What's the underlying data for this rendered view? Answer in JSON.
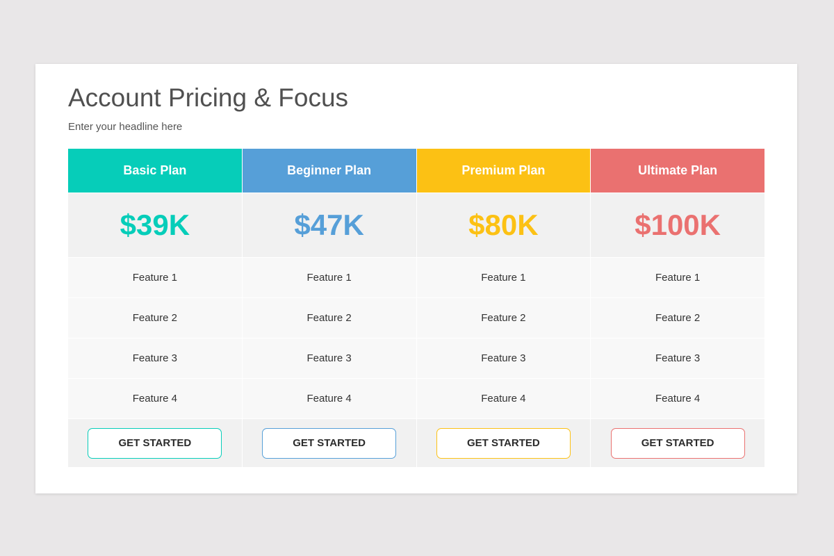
{
  "title": "Account Pricing & Focus",
  "subtitle": "Enter your headline here",
  "plans": [
    {
      "name": "Basic Plan",
      "price": "$39K",
      "color": "#06cdb9",
      "features": [
        "Feature 1",
        "Feature 2",
        "Feature 3",
        "Feature 4"
      ],
      "button": "GET STARTED"
    },
    {
      "name": "Beginner Plan",
      "price": "$47K",
      "color": "#569fd8",
      "features": [
        "Feature 1",
        "Feature 2",
        "Feature 3",
        "Feature 4"
      ],
      "button": "GET STARTED"
    },
    {
      "name": "Premium Plan",
      "price": "$80K",
      "color": "#fcc114",
      "features": [
        "Feature 1",
        "Feature 2",
        "Feature 3",
        "Feature 4"
      ],
      "button": "GET STARTED"
    },
    {
      "name": "Ultimate Plan",
      "price": "$100K",
      "color": "#ea7170",
      "features": [
        "Feature 1",
        "Feature 2",
        "Feature 3",
        "Feature 4"
      ],
      "button": "GET STARTED"
    }
  ]
}
